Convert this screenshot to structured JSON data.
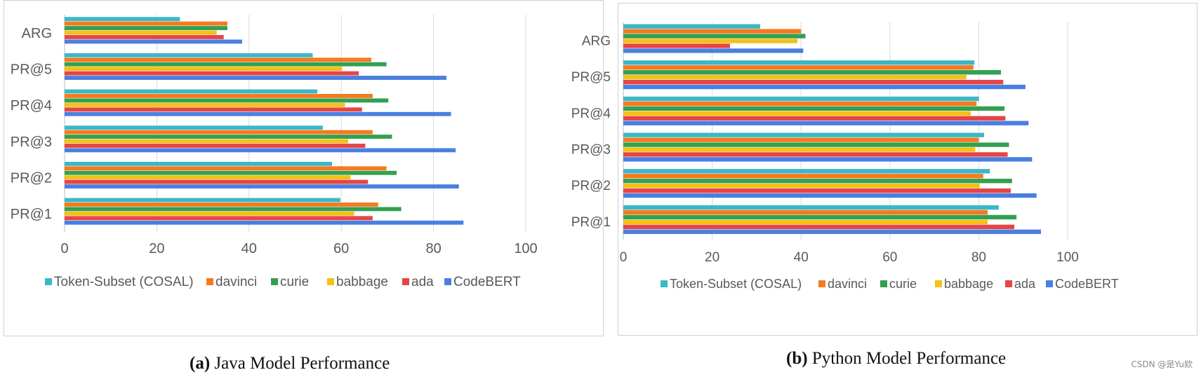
{
  "chart_data": [
    {
      "type": "bar",
      "orientation": "horizontal",
      "categories": [
        "PR@1",
        "PR@2",
        "PR@3",
        "PR@4",
        "PR@5",
        "ARG"
      ],
      "series": [
        {
          "name": "CodeBERT",
          "color": "#4A7FE0",
          "values": [
            86.5,
            85.5,
            84.8,
            83.8,
            82.8,
            38.5
          ]
        },
        {
          "name": "ada",
          "color": "#E64545",
          "values": [
            66.8,
            65.8,
            65.2,
            64.5,
            63.8,
            34.5
          ]
        },
        {
          "name": "babbage",
          "color": "#F5C018",
          "values": [
            62.8,
            62.0,
            61.5,
            60.8,
            60.2,
            33.0
          ]
        },
        {
          "name": "curie",
          "color": "#33A050",
          "values": [
            73.0,
            72.0,
            71.0,
            70.2,
            69.8,
            35.3
          ]
        },
        {
          "name": "davinci",
          "color": "#F57A1F",
          "values": [
            68.0,
            69.8,
            66.8,
            66.8,
            66.5,
            35.3
          ]
        },
        {
          "name": "Token-Subset (COSAL)",
          "color": "#3BB8C6",
          "values": [
            59.8,
            58.0,
            56.0,
            54.8,
            53.8,
            25.0
          ]
        }
      ],
      "xticks": [
        "0",
        "20",
        "40",
        "60",
        "80",
        "100"
      ],
      "xlim": [
        0,
        100
      ],
      "grid": true,
      "legend_position": "bottom",
      "caption_label": "(a)",
      "caption_text": "Java Model Performance"
    },
    {
      "type": "bar",
      "orientation": "horizontal",
      "categories": [
        "PR@1",
        "PR@2",
        "PR@3",
        "PR@4",
        "PR@5",
        "ARG"
      ],
      "series": [
        {
          "name": "CodeBERT",
          "color": "#4A7FE0",
          "values": [
            94.0,
            93.0,
            92.0,
            91.2,
            90.5,
            40.5
          ]
        },
        {
          "name": "ada",
          "color": "#E64545",
          "values": [
            88.0,
            87.2,
            86.5,
            86.0,
            85.5,
            24.0
          ]
        },
        {
          "name": "babbage",
          "color": "#F5C018",
          "values": [
            82.0,
            80.2,
            79.2,
            78.2,
            77.2,
            39.2
          ]
        },
        {
          "name": "curie",
          "color": "#33A050",
          "values": [
            88.5,
            87.5,
            86.8,
            85.8,
            85.0,
            41.0
          ]
        },
        {
          "name": "davinci",
          "color": "#F57A1F",
          "values": [
            82.0,
            81.0,
            80.0,
            79.5,
            78.8,
            40.0
          ]
        },
        {
          "name": "Token-Subset (COSAL)",
          "color": "#3BB8C6",
          "values": [
            84.5,
            82.5,
            81.2,
            80.0,
            79.0,
            30.8
          ]
        }
      ],
      "xticks": [
        "0",
        "20",
        "40",
        "60",
        "80",
        "100"
      ],
      "xlim": [
        0,
        100
      ],
      "grid": true,
      "legend_position": "bottom",
      "caption_label": "(b)",
      "caption_text": "Python Model Performance"
    }
  ],
  "legend_order": [
    "Token-Subset (COSAL)",
    "davinci",
    "curie",
    "babbage",
    "ada",
    "CodeBERT"
  ],
  "watermark": "CSDN @是Yu欸"
}
